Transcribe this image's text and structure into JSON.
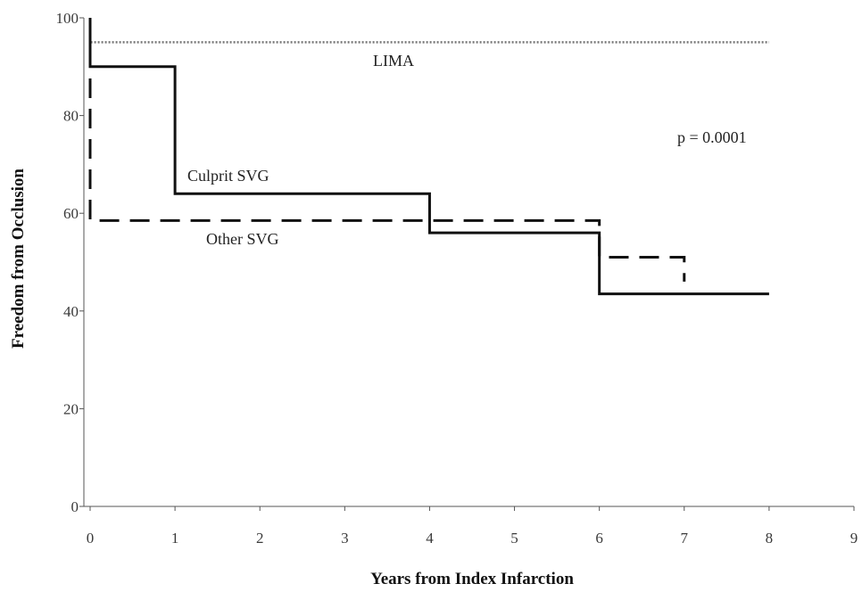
{
  "chart_data": {
    "type": "line",
    "title": "",
    "xlabel": "Years from Index Infarction",
    "ylabel": "Freedom from Occlusion",
    "xlim": [
      0,
      9
    ],
    "ylim": [
      0,
      100
    ],
    "x_ticks": [
      "0",
      "1",
      "2",
      "3",
      "4",
      "5",
      "6",
      "7",
      "8",
      "9"
    ],
    "y_ticks": [
      "0",
      "20",
      "40",
      "60",
      "80",
      "100"
    ],
    "grid": false,
    "legend": "none",
    "series": [
      {
        "name": "LIMA",
        "style": "dotted",
        "step": true,
        "x": [
          0,
          0,
          8
        ],
        "y": [
          100,
          95,
          95
        ]
      },
      {
        "name": "Culprit SVG",
        "style": "solid",
        "step": true,
        "x": [
          0,
          0,
          1,
          4,
          6,
          8
        ],
        "y": [
          100,
          90,
          64,
          56,
          43.5,
          43.5
        ]
      },
      {
        "name": "Other SVG",
        "style": "dashed",
        "step": true,
        "x": [
          0,
          0,
          4,
          6,
          7
        ],
        "y": [
          100,
          58.5,
          58.5,
          51,
          46
        ]
      }
    ],
    "annotations": {
      "lima": "LIMA",
      "culprit": "Culprit SVG",
      "other": "Other SVG",
      "pvalue": "p = 0.0001"
    }
  }
}
